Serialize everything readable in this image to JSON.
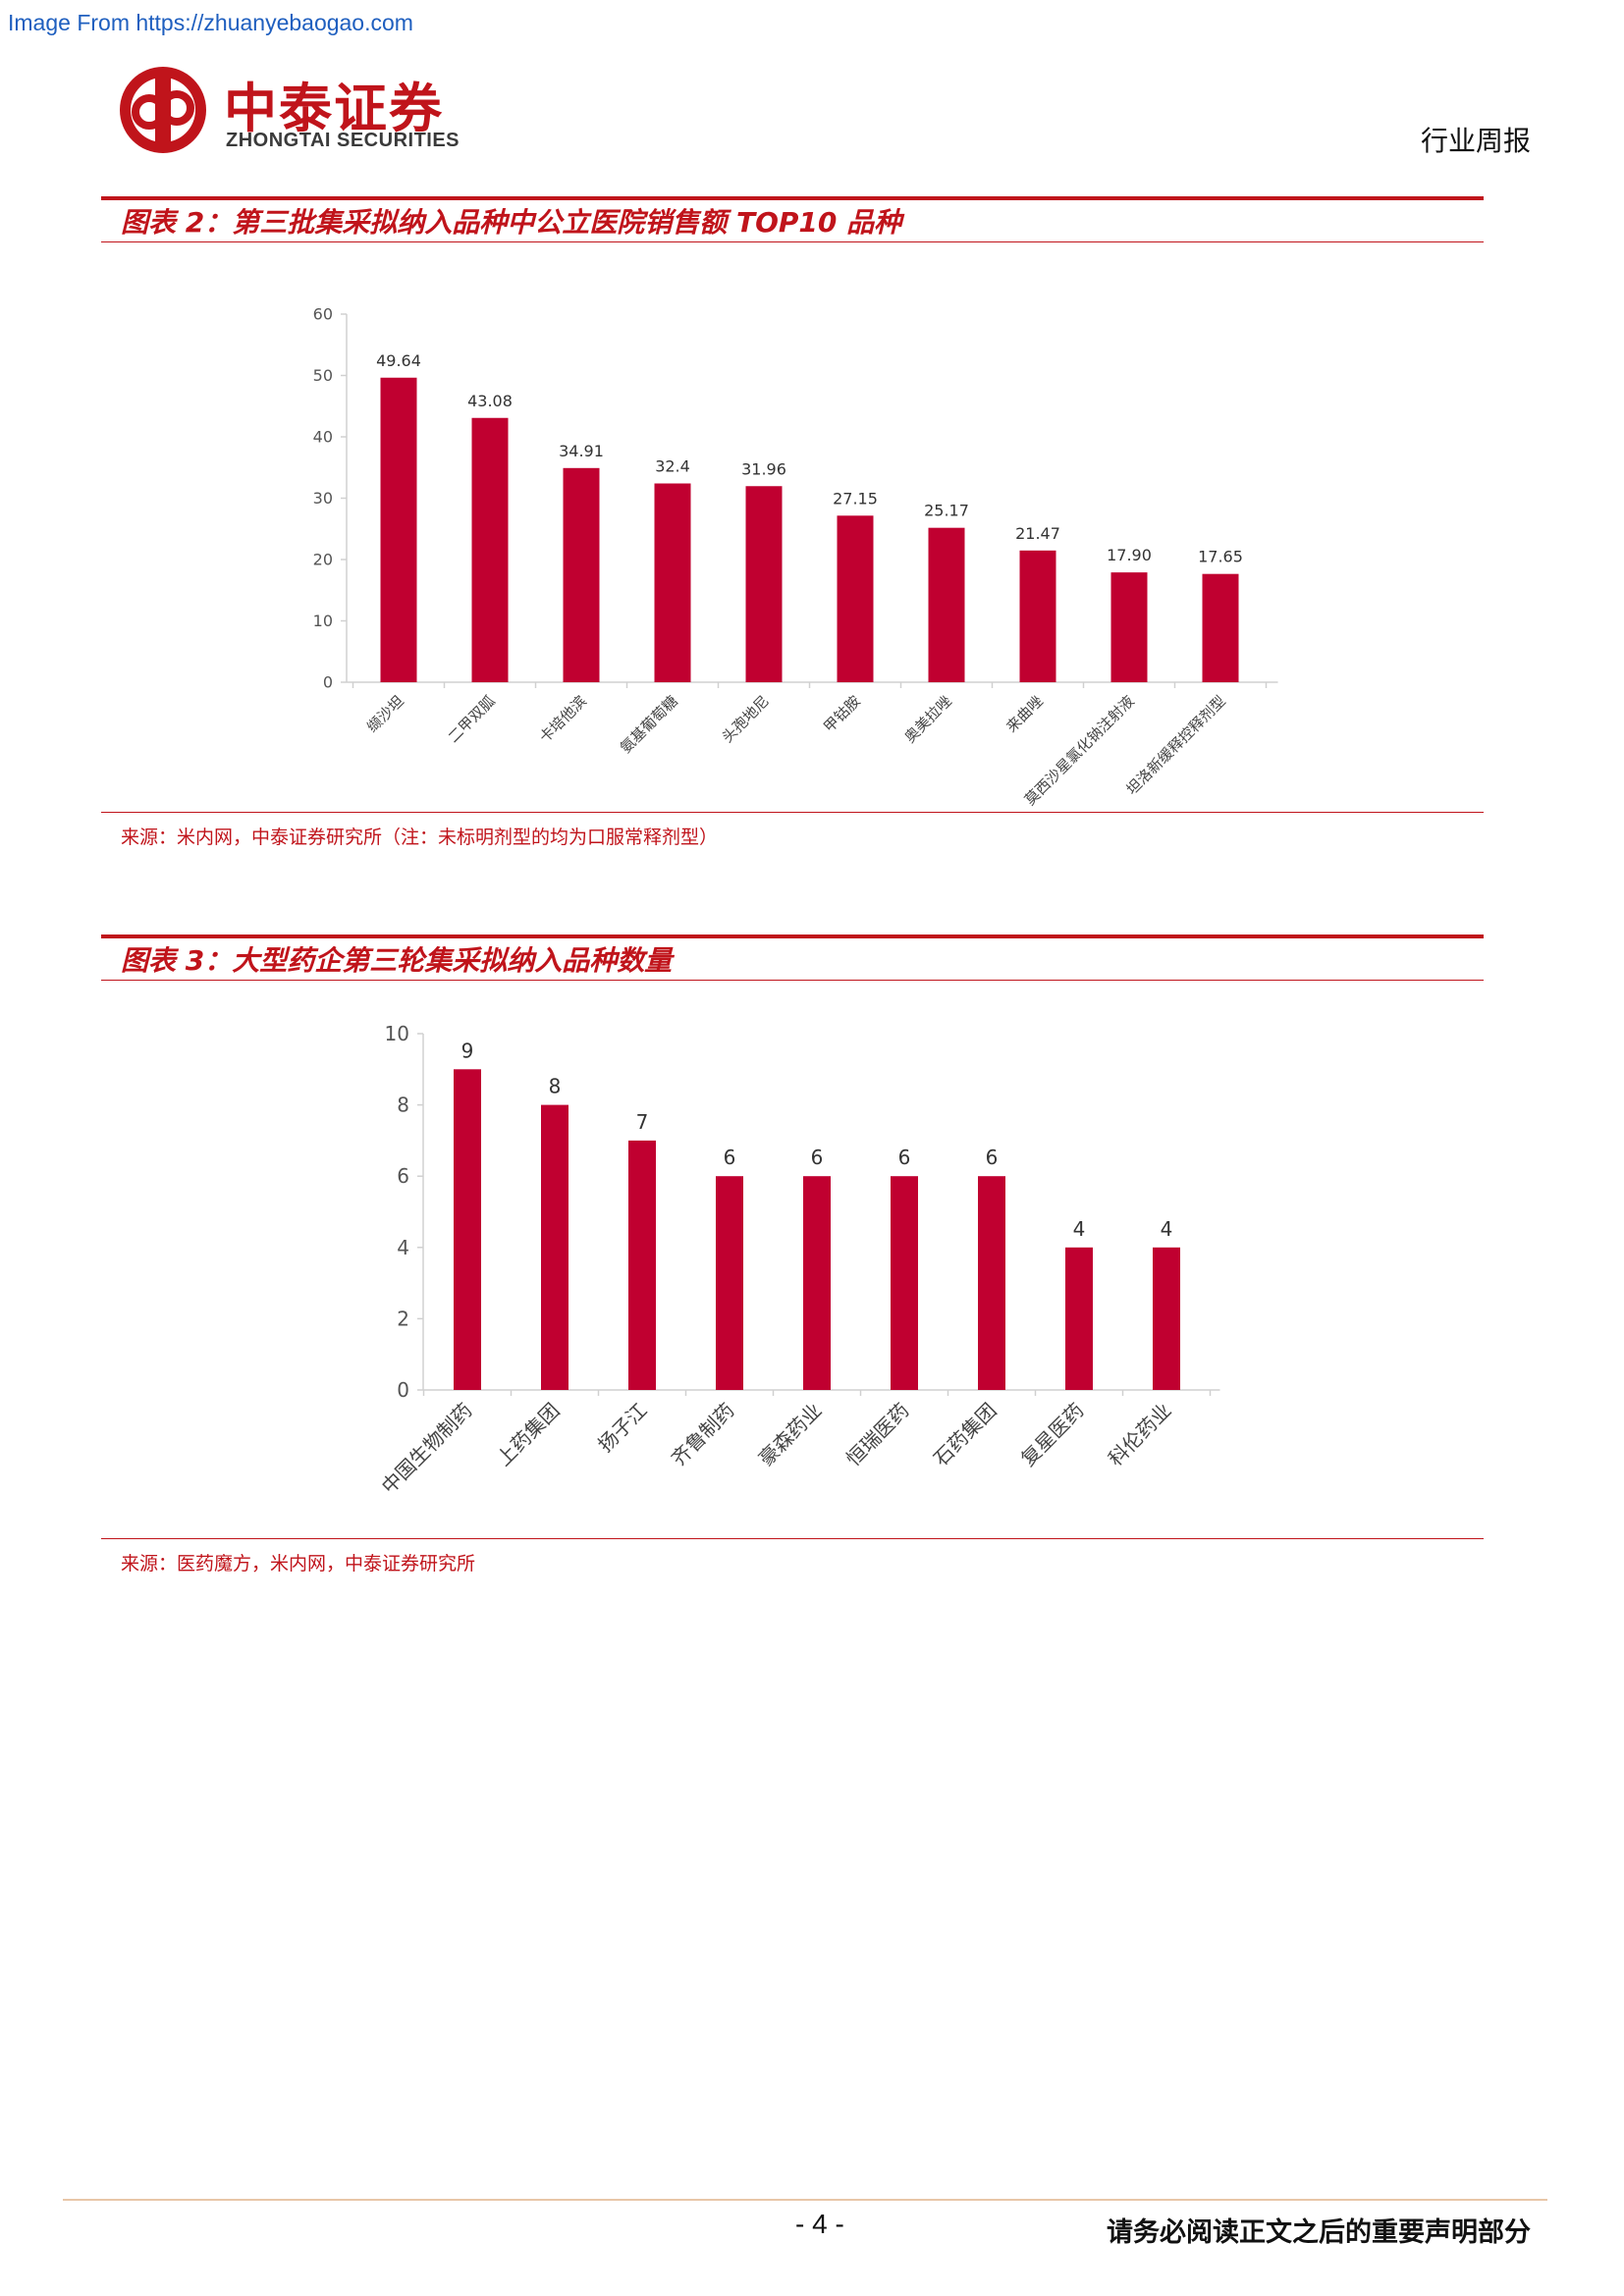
{
  "watermark": "Image From https://zhuanyebaogao.com",
  "logo": {
    "cn": "中泰证券",
    "en": "ZHONGTAI SECURITIES"
  },
  "doc_type": "行业周报",
  "figures": [
    {
      "title": "图表 2：第三批集采拟纳入品种中公立医院销售额 TOP10 品种",
      "source": "来源：米内网，中泰证券研究所（注：未标明剂型的均为口服常释剂型）"
    },
    {
      "title": "图表 3：大型药企第三轮集采拟纳入品种数量",
      "source": "来源：医药魔方，米内网，中泰证券研究所"
    }
  ],
  "chart_data": [
    {
      "type": "bar",
      "categories": [
        "缬沙坦",
        "二甲双胍",
        "卡培他滨",
        "氨基葡萄糖",
        "头孢地尼",
        "甲钴胺",
        "奥美拉唑",
        "来曲唑",
        "莫西沙星氯化钠注射液",
        "坦洛新缓释控释剂型"
      ],
      "values": [
        49.64,
        43.08,
        34.91,
        32.4,
        31.96,
        27.15,
        25.17,
        21.47,
        17.9,
        17.65
      ],
      "value_labels": [
        "49.64",
        "43.08",
        "34.91",
        "32.4",
        "31.96",
        "27.15",
        "25.17",
        "21.47",
        "17.90",
        "17.65"
      ],
      "ylim": [
        0,
        60
      ],
      "yticks": [
        "0",
        "10",
        "20",
        "30",
        "40",
        "50",
        "60"
      ],
      "color": "#c00030"
    },
    {
      "type": "bar",
      "categories": [
        "中国生物制药",
        "上药集团",
        "扬子江",
        "齐鲁制药",
        "豪森药业",
        "恒瑞医药",
        "石药集团",
        "复星医药",
        "科伦药业"
      ],
      "values": [
        9,
        8,
        7,
        6,
        6,
        6,
        6,
        4,
        4
      ],
      "value_labels": [
        "9",
        "8",
        "7",
        "6",
        "6",
        "6",
        "6",
        "4",
        "4"
      ],
      "ylim": [
        0,
        10
      ],
      "yticks": [
        "0",
        "2",
        "4",
        "6",
        "8",
        "10"
      ],
      "color": "#c00030"
    }
  ],
  "footer": {
    "page": "- 4 -",
    "disclaimer": "请务必阅读正文之后的重要声明部分"
  }
}
